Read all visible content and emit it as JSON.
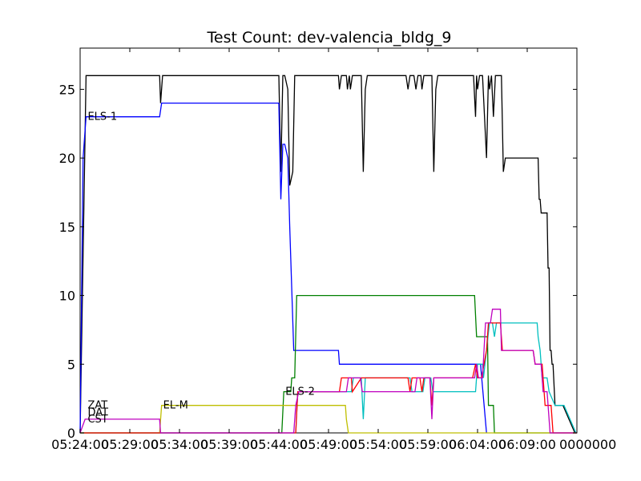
{
  "chart_data": {
    "type": "line",
    "title": "Test Count: dev-valencia_bldg_9",
    "xlabel": "",
    "ylabel": "",
    "ylim": [
      0,
      28
    ],
    "yticks": [
      0,
      5,
      10,
      15,
      20,
      25
    ],
    "xlim": [
      0,
      50
    ],
    "xticks": [
      0,
      5,
      10,
      15,
      20,
      25,
      30,
      35,
      40,
      45,
      50
    ],
    "xtick_labels": [
      "05:24:00",
      "05:29:00",
      "05:34:00",
      "05:39:00",
      "05:44:00",
      "05:49:00",
      "05:54:00",
      "05:59:00",
      "06:04:00",
      "06:09:00",
      "0000000"
    ],
    "grid": false,
    "x_unit_note": "minutes after 05:24:00",
    "series": [
      {
        "name": "",
        "color": "#000000",
        "points": [
          [
            0,
            0
          ],
          [
            0.6,
            26
          ],
          [
            8,
            26
          ],
          [
            8.1,
            24
          ],
          [
            8.3,
            26
          ],
          [
            20,
            26
          ],
          [
            20.2,
            19
          ],
          [
            20.4,
            26
          ],
          [
            20.6,
            26
          ],
          [
            20.9,
            25
          ],
          [
            21.1,
            18
          ],
          [
            21.4,
            19
          ],
          [
            21.6,
            26
          ],
          [
            26,
            26
          ],
          [
            26.1,
            25
          ],
          [
            26.3,
            26
          ],
          [
            26.8,
            26
          ],
          [
            26.9,
            25
          ],
          [
            27.1,
            26
          ],
          [
            27.2,
            25
          ],
          [
            27.4,
            26
          ],
          [
            28.3,
            26
          ],
          [
            28.5,
            19
          ],
          [
            28.7,
            25
          ],
          [
            28.9,
            26
          ],
          [
            32.8,
            26
          ],
          [
            33,
            25
          ],
          [
            33.2,
            26
          ],
          [
            33.6,
            26
          ],
          [
            33.8,
            25
          ],
          [
            34,
            26
          ],
          [
            34.3,
            26
          ],
          [
            34.4,
            25
          ],
          [
            34.6,
            26
          ],
          [
            35.4,
            26
          ],
          [
            35.6,
            19
          ],
          [
            35.8,
            25
          ],
          [
            36,
            26
          ],
          [
            39.6,
            26
          ],
          [
            39.8,
            23
          ],
          [
            39.9,
            26
          ],
          [
            40,
            25
          ],
          [
            40.2,
            26
          ],
          [
            40.5,
            26
          ],
          [
            40.9,
            20
          ],
          [
            41.1,
            26
          ],
          [
            41.2,
            25
          ],
          [
            41.4,
            26
          ],
          [
            41.6,
            23
          ],
          [
            41.8,
            26
          ],
          [
            42.4,
            26
          ],
          [
            42.6,
            19
          ],
          [
            42.8,
            20
          ],
          [
            46.1,
            20
          ],
          [
            46.2,
            17
          ],
          [
            46.3,
            17
          ],
          [
            46.4,
            16
          ],
          [
            47,
            16
          ],
          [
            47.1,
            12
          ],
          [
            47.2,
            12
          ],
          [
            47.3,
            6
          ],
          [
            47.4,
            6
          ],
          [
            47.5,
            5
          ],
          [
            47.6,
            5
          ],
          [
            47.8,
            2
          ],
          [
            48.6,
            2
          ],
          [
            49.8,
            0
          ]
        ]
      },
      {
        "name": "ELS-1",
        "color": "#0000ff",
        "points": [
          [
            0,
            0
          ],
          [
            0.3,
            20
          ],
          [
            0.6,
            23
          ],
          [
            8,
            23
          ],
          [
            8.2,
            24
          ],
          [
            20,
            24
          ],
          [
            20.2,
            17
          ],
          [
            20.4,
            21
          ],
          [
            20.6,
            21
          ],
          [
            20.9,
            20
          ],
          [
            21.1,
            15
          ],
          [
            21.5,
            6
          ],
          [
            26,
            6
          ],
          [
            26.1,
            5
          ],
          [
            40.3,
            5
          ],
          [
            40.9,
            0
          ]
        ]
      },
      {
        "name": "ELS-2",
        "color": "#008000",
        "points": [
          [
            0,
            0
          ],
          [
            20.3,
            0
          ],
          [
            20.5,
            3
          ],
          [
            21.2,
            3
          ],
          [
            21.3,
            4
          ],
          [
            21.6,
            4
          ],
          [
            21.8,
            10
          ],
          [
            39.7,
            10
          ],
          [
            39.9,
            7
          ],
          [
            41,
            7
          ],
          [
            41.1,
            2
          ],
          [
            41.6,
            2
          ],
          [
            41.7,
            0
          ],
          [
            50,
            0
          ]
        ]
      },
      {
        "name": "EL-M",
        "color": "#bfbf00",
        "points": [
          [
            0,
            0
          ],
          [
            8,
            0
          ],
          [
            8.2,
            2
          ],
          [
            26.7,
            2
          ],
          [
            26.8,
            1
          ],
          [
            27,
            0
          ],
          [
            50,
            0
          ]
        ]
      },
      {
        "name": "",
        "color": "#00bfbf",
        "points": [
          [
            0,
            0
          ],
          [
            21.7,
            0
          ],
          [
            21.9,
            3
          ],
          [
            27.3,
            3
          ],
          [
            27.5,
            4
          ],
          [
            28.3,
            4
          ],
          [
            28.5,
            1
          ],
          [
            28.7,
            4
          ],
          [
            33.2,
            4
          ],
          [
            33.4,
            3
          ],
          [
            34.5,
            3
          ],
          [
            34.7,
            4
          ],
          [
            35.3,
            4
          ],
          [
            35.5,
            3
          ],
          [
            39.8,
            3
          ],
          [
            40,
            5
          ],
          [
            40.5,
            5
          ],
          [
            40.6,
            4
          ],
          [
            41.2,
            8
          ],
          [
            41.5,
            8
          ],
          [
            41.7,
            7
          ],
          [
            41.9,
            8
          ],
          [
            42.8,
            8
          ],
          [
            46,
            8
          ],
          [
            46.1,
            7
          ],
          [
            46.3,
            6
          ],
          [
            46.5,
            4
          ],
          [
            47,
            4
          ],
          [
            47.2,
            3
          ],
          [
            47.8,
            2
          ],
          [
            48.7,
            2
          ],
          [
            49.9,
            0
          ]
        ]
      },
      {
        "name": "",
        "color": "#ff0000",
        "points": [
          [
            0,
            0
          ],
          [
            21.7,
            0
          ],
          [
            21.9,
            3
          ],
          [
            26.1,
            3
          ],
          [
            26.3,
            4
          ],
          [
            27.3,
            4
          ],
          [
            27.4,
            3
          ],
          [
            28.3,
            4
          ],
          [
            33,
            4
          ],
          [
            33.2,
            3
          ],
          [
            33.4,
            4
          ],
          [
            34.2,
            4
          ],
          [
            34.4,
            3
          ],
          [
            34.6,
            4
          ],
          [
            35.2,
            4
          ],
          [
            35.4,
            2
          ],
          [
            35.6,
            4
          ],
          [
            39.5,
            4
          ],
          [
            39.8,
            5
          ],
          [
            40,
            4
          ],
          [
            40.4,
            4
          ],
          [
            40.9,
            6
          ],
          [
            41.1,
            8
          ],
          [
            42.3,
            8
          ],
          [
            42.5,
            6
          ],
          [
            45.6,
            6
          ],
          [
            45.8,
            5
          ],
          [
            46.5,
            5
          ],
          [
            46.8,
            2
          ],
          [
            47.4,
            2
          ],
          [
            47.6,
            0
          ],
          [
            50,
            0
          ]
        ]
      },
      {
        "name": "",
        "color": "#bf00bf",
        "points": [
          [
            0,
            0
          ],
          [
            0.5,
            1
          ],
          [
            8,
            1
          ],
          [
            8.1,
            0
          ],
          [
            21.5,
            0
          ],
          [
            21.7,
            2
          ],
          [
            22,
            3
          ],
          [
            26.8,
            3
          ],
          [
            27,
            4
          ],
          [
            28.2,
            4
          ],
          [
            28.4,
            3
          ],
          [
            33.7,
            3
          ],
          [
            33.9,
            4
          ],
          [
            35.2,
            4
          ],
          [
            35.4,
            1
          ],
          [
            35.6,
            4
          ],
          [
            39.7,
            4
          ],
          [
            39.9,
            5
          ],
          [
            40.1,
            4
          ],
          [
            40.5,
            4
          ],
          [
            40.8,
            8
          ],
          [
            41.3,
            8
          ],
          [
            41.5,
            9
          ],
          [
            42.3,
            9
          ],
          [
            42.4,
            6
          ],
          [
            45.6,
            6
          ],
          [
            45.8,
            5
          ],
          [
            46.4,
            5
          ],
          [
            46.6,
            3
          ],
          [
            47,
            3
          ],
          [
            47.3,
            0
          ],
          [
            50,
            0
          ]
        ]
      }
    ],
    "annotations": [
      {
        "text": "ELS-1",
        "x": 0.6,
        "y": 23
      },
      {
        "text": "ZAT",
        "x": 0.6,
        "y": 2
      },
      {
        "text": "DAT",
        "x": 0.6,
        "y": 1.5
      },
      {
        "text": "CST",
        "x": 0.6,
        "y": 1
      },
      {
        "text": "EL-M",
        "x": 8.2,
        "y": 2
      },
      {
        "text": "ELS-2",
        "x": 20.5,
        "y": 3
      }
    ]
  }
}
